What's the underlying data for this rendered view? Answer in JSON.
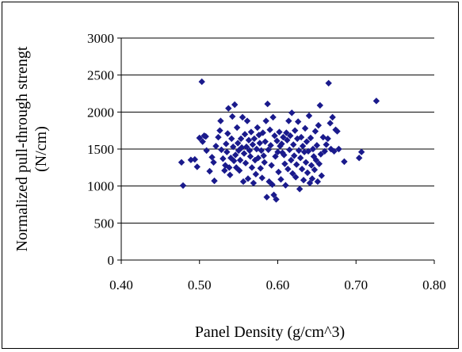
{
  "chart_data": {
    "type": "scatter",
    "title": "",
    "xlabel": "Panel Density (g/cm^3)",
    "ylabel_line1": "Normalized pull-through strengt",
    "ylabel_line2": "(N/cm)",
    "xlim": [
      0.4,
      0.8
    ],
    "ylim": [
      0,
      3000
    ],
    "x_ticks": [
      "0.40",
      "0.50",
      "0.60",
      "0.70",
      "0.80"
    ],
    "y_ticks": [
      "0",
      "500",
      "1000",
      "1500",
      "2000",
      "2500",
      "3000"
    ],
    "grid": "horizontal",
    "legend": "none",
    "marker_color": "#1a1a8c",
    "marker_shape": "diamond",
    "points": [
      [
        0.479,
        1007
      ],
      [
        0.477,
        1320
      ],
      [
        0.489,
        1353
      ],
      [
        0.494,
        1360
      ],
      [
        0.497,
        1260
      ],
      [
        0.5,
        1650
      ],
      [
        0.503,
        2410
      ],
      [
        0.504,
        1600
      ],
      [
        0.506,
        1680
      ],
      [
        0.508,
        1670
      ],
      [
        0.509,
        1480
      ],
      [
        0.513,
        1200
      ],
      [
        0.516,
        1390
      ],
      [
        0.518,
        1320
      ],
      [
        0.519,
        1070
      ],
      [
        0.521,
        1540
      ],
      [
        0.524,
        1660
      ],
      [
        0.526,
        1750
      ],
      [
        0.527,
        1880
      ],
      [
        0.528,
        1490
      ],
      [
        0.53,
        1370
      ],
      [
        0.532,
        1210
      ],
      [
        0.533,
        1280
      ],
      [
        0.534,
        1570
      ],
      [
        0.535,
        1460
      ],
      [
        0.536,
        1710
      ],
      [
        0.537,
        2050
      ],
      [
        0.538,
        1250
      ],
      [
        0.539,
        1150
      ],
      [
        0.54,
        1380
      ],
      [
        0.541,
        1640
      ],
      [
        0.542,
        1940
      ],
      [
        0.543,
        1530
      ],
      [
        0.544,
        1340
      ],
      [
        0.545,
        2100
      ],
      [
        0.546,
        1420
      ],
      [
        0.547,
        1250
      ],
      [
        0.548,
        1790
      ],
      [
        0.549,
        1580
      ],
      [
        0.55,
        1480
      ],
      [
        0.551,
        1210
      ],
      [
        0.552,
        1350
      ],
      [
        0.553,
        1640
      ],
      [
        0.554,
        1520
      ],
      [
        0.555,
        1930
      ],
      [
        0.556,
        1060
      ],
      [
        0.557,
        1440
      ],
      [
        0.558,
        1700
      ],
      [
        0.559,
        1310
      ],
      [
        0.56,
        1530
      ],
      [
        0.561,
        1880
      ],
      [
        0.562,
        1100
      ],
      [
        0.563,
        1620
      ],
      [
        0.564,
        1480
      ],
      [
        0.565,
        1400
      ],
      [
        0.566,
        1730
      ],
      [
        0.567,
        1250
      ],
      [
        0.568,
        1560
      ],
      [
        0.569,
        1040
      ],
      [
        0.57,
        1640
      ],
      [
        0.571,
        1350
      ],
      [
        0.572,
        1160
      ],
      [
        0.573,
        1500
      ],
      [
        0.574,
        1790
      ],
      [
        0.575,
        1380
      ],
      [
        0.576,
        1690
      ],
      [
        0.577,
        1580
      ],
      [
        0.578,
        1240
      ],
      [
        0.579,
        1480
      ],
      [
        0.58,
        1110
      ],
      [
        0.581,
        1720
      ],
      [
        0.582,
        1410
      ],
      [
        0.583,
        1320
      ],
      [
        0.584,
        1600
      ],
      [
        0.585,
        1880
      ],
      [
        0.586,
        850
      ],
      [
        0.587,
        2110
      ],
      [
        0.588,
        1490
      ],
      [
        0.589,
        1060
      ],
      [
        0.59,
        1760
      ],
      [
        0.591,
        1550
      ],
      [
        0.592,
        1280
      ],
      [
        0.593,
        1020
      ],
      [
        0.594,
        1930
      ],
      [
        0.595,
        880
      ],
      [
        0.596,
        1680
      ],
      [
        0.597,
        1400
      ],
      [
        0.598,
        820
      ],
      [
        0.599,
        1610
      ],
      [
        0.6,
        1460
      ],
      [
        0.601,
        1190
      ],
      [
        0.602,
        1730
      ],
      [
        0.603,
        1540
      ],
      [
        0.604,
        1090
      ],
      [
        0.605,
        1570
      ],
      [
        0.606,
        1450
      ],
      [
        0.607,
        1660
      ],
      [
        0.608,
        1420
      ],
      [
        0.609,
        1300
      ],
      [
        0.61,
        1010
      ],
      [
        0.611,
        1720
      ],
      [
        0.612,
        1620
      ],
      [
        0.613,
        1230
      ],
      [
        0.614,
        1880
      ],
      [
        0.615,
        1490
      ],
      [
        0.616,
        1680
      ],
      [
        0.617,
        1350
      ],
      [
        0.618,
        1990
      ],
      [
        0.619,
        1170
      ],
      [
        0.62,
        1560
      ],
      [
        0.621,
        1410
      ],
      [
        0.622,
        1750
      ],
      [
        0.623,
        1120
      ],
      [
        0.624,
        1290
      ],
      [
        0.625,
        1640
      ],
      [
        0.626,
        1870
      ],
      [
        0.627,
        1480
      ],
      [
        0.628,
        960
      ],
      [
        0.629,
        1380
      ],
      [
        0.63,
        1660
      ],
      [
        0.631,
        1230
      ],
      [
        0.632,
        1540
      ],
      [
        0.633,
        1080
      ],
      [
        0.634,
        1460
      ],
      [
        0.635,
        1780
      ],
      [
        0.636,
        1320
      ],
      [
        0.637,
        1600
      ],
      [
        0.638,
        1180
      ],
      [
        0.639,
        1470
      ],
      [
        0.64,
        1950
      ],
      [
        0.641,
        1040
      ],
      [
        0.642,
        1650
      ],
      [
        0.643,
        1280
      ],
      [
        0.644,
        1100
      ],
      [
        0.645,
        1500
      ],
      [
        0.646,
        1400
      ],
      [
        0.647,
        1220
      ],
      [
        0.648,
        1740
      ],
      [
        0.649,
        1350
      ],
      [
        0.65,
        1550
      ],
      [
        0.651,
        1060
      ],
      [
        0.652,
        1820
      ],
      [
        0.653,
        1300
      ],
      [
        0.654,
        2090
      ],
      [
        0.655,
        1430
      ],
      [
        0.656,
        1140
      ],
      [
        0.658,
        1660
      ],
      [
        0.66,
        1470
      ],
      [
        0.662,
        1560
      ],
      [
        0.664,
        1640
      ],
      [
        0.665,
        2390
      ],
      [
        0.667,
        1850
      ],
      [
        0.668,
        1500
      ],
      [
        0.67,
        1930
      ],
      [
        0.672,
        1470
      ],
      [
        0.674,
        1760
      ],
      [
        0.676,
        1740
      ],
      [
        0.678,
        1500
      ],
      [
        0.685,
        1330
      ],
      [
        0.704,
        1380
      ],
      [
        0.707,
        1460
      ],
      [
        0.726,
        2150
      ]
    ]
  }
}
